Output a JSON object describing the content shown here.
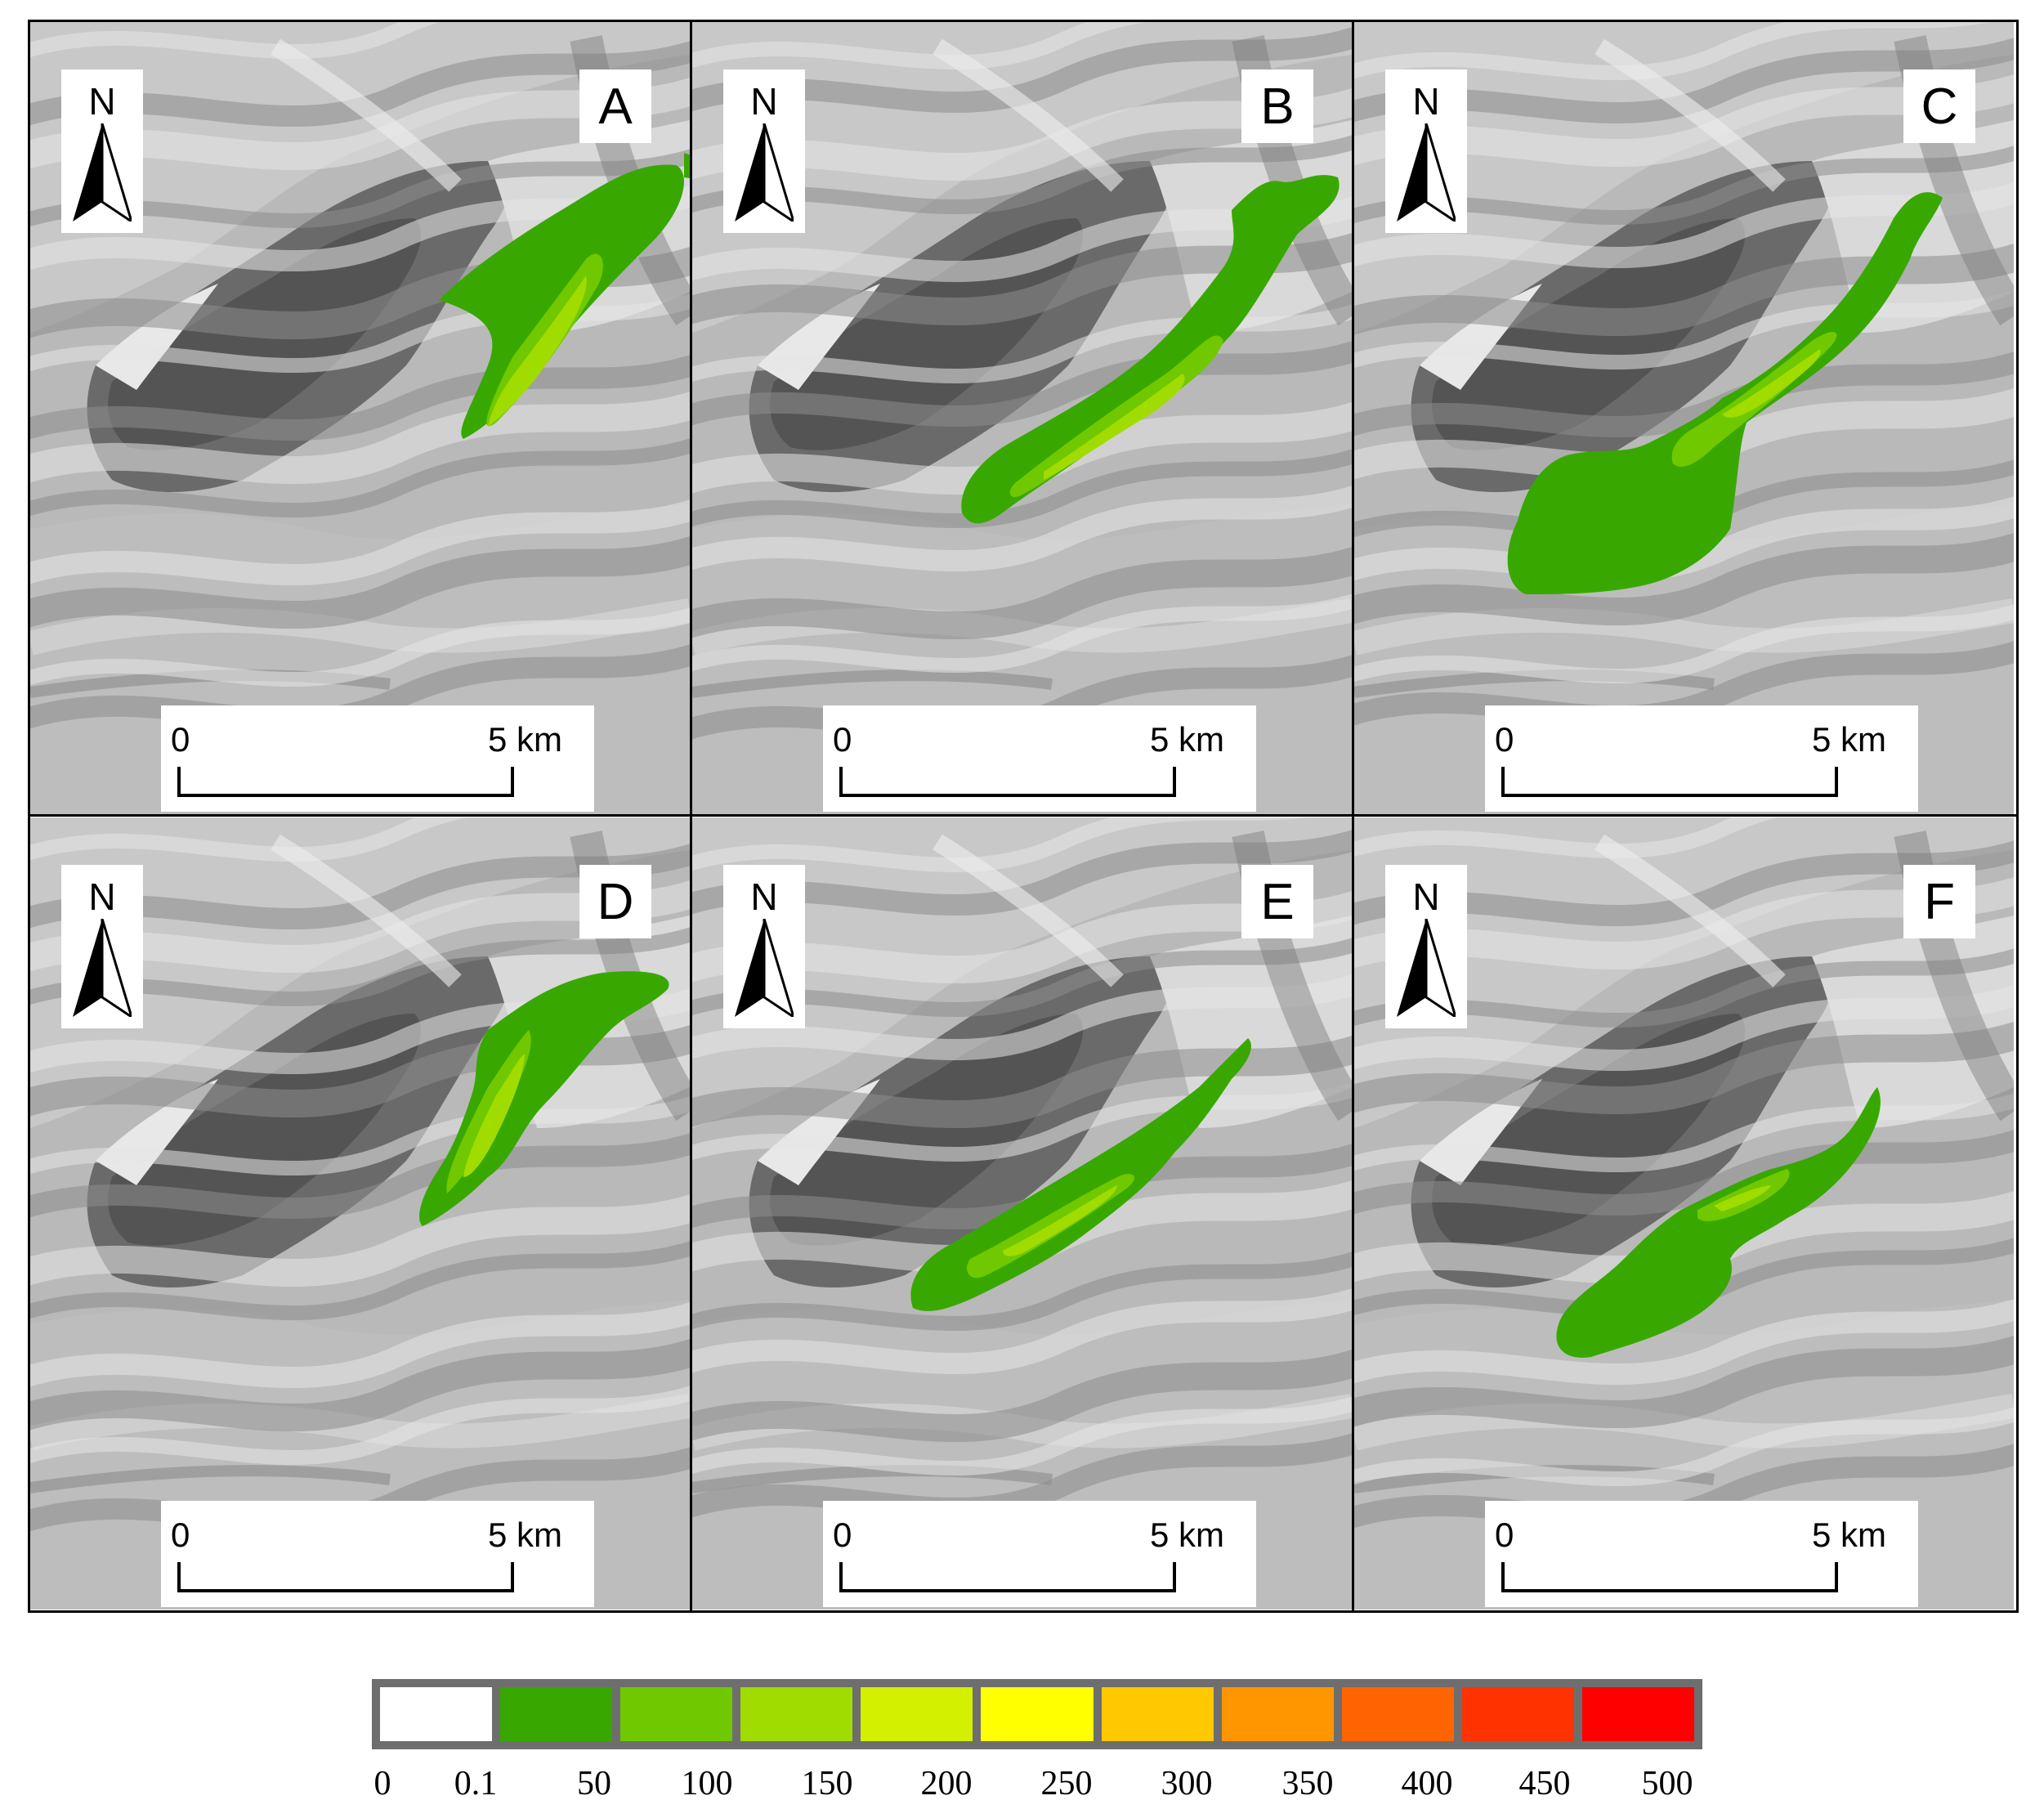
{
  "panels": [
    {
      "id": "A",
      "label": "A",
      "north": "N",
      "scale_start": "0",
      "scale_end": "5 km"
    },
    {
      "id": "B",
      "label": "B",
      "north": "N",
      "scale_start": "0",
      "scale_end": "5 km"
    },
    {
      "id": "C",
      "label": "C",
      "north": "N",
      "scale_start": "0",
      "scale_end": "5 km"
    },
    {
      "id": "D",
      "label": "D",
      "north": "N",
      "scale_start": "0",
      "scale_end": "5 km"
    },
    {
      "id": "E",
      "label": "E",
      "north": "N",
      "scale_start": "0",
      "scale_end": "5 km"
    },
    {
      "id": "F",
      "label": "F",
      "north": "N",
      "scale_start": "0",
      "scale_end": "5 km"
    }
  ],
  "legend": {
    "labels": [
      "0",
      "0.1",
      "50",
      "100",
      "150",
      "200",
      "250",
      "300",
      "350",
      "400",
      "450",
      "500"
    ],
    "colors": [
      "#ffffff",
      "#38a800",
      "#70c800",
      "#a0dc00",
      "#d2f000",
      "#ffff00",
      "#ffc800",
      "#ff9600",
      "#ff6400",
      "#ff3200",
      "#ff0000"
    ]
  }
}
